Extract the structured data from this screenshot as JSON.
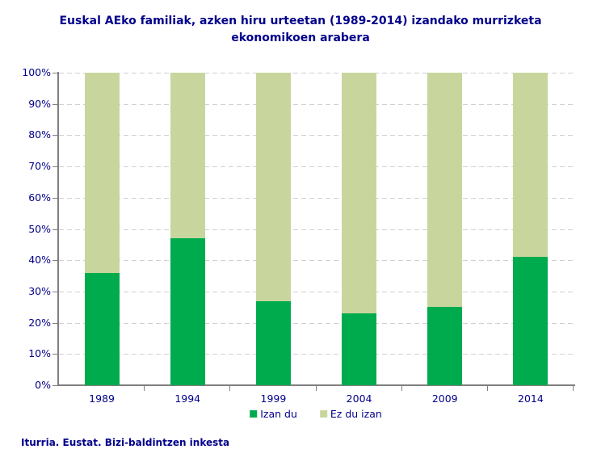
{
  "title": "Euskal AEko familiak, azken hiru urteetan (1989-2014) izandako murrizketa ekonomikoen arabera",
  "source": "Iturria. Eustat. Bizi-baldintzen inkesta",
  "colors": {
    "title_text": "#00008B",
    "axis_text": "#00008B",
    "axis_line": "#7F7F7F",
    "gridline": "#D0D0D0",
    "background": "#FFFFFF"
  },
  "chart_data": {
    "type": "bar",
    "subtype": "stacked-100-percent",
    "title": "Euskal AEko familiak, azken hiru urteetan (1989-2014) izandako murrizketa ekonomikoen arabera",
    "categories": [
      "1989",
      "1994",
      "1999",
      "2004",
      "2009",
      "2014"
    ],
    "series": [
      {
        "name": "Izan du",
        "color": "#00AB4E",
        "values": [
          36,
          47,
          27,
          23,
          25,
          41
        ]
      },
      {
        "name": "Ez du izan",
        "color": "#C8D69E",
        "values": [
          64,
          53,
          73,
          77,
          75,
          59
        ]
      }
    ],
    "xlabel": "",
    "ylabel": "",
    "ylim": [
      0,
      100
    ],
    "yticks": [
      0,
      10,
      20,
      30,
      40,
      50,
      60,
      70,
      80,
      90,
      100
    ],
    "ytick_suffix": "%",
    "grid": "horizontal-dashed",
    "legend_position": "bottom"
  }
}
